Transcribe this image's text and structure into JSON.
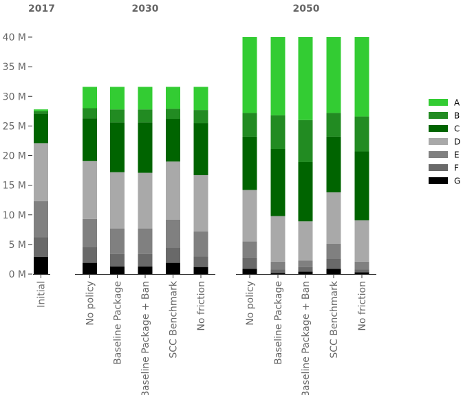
{
  "chart_data": {
    "type": "bar",
    "stacked": true,
    "y_ticks": [
      "0 M",
      "5 M",
      "10 M",
      "15 M",
      "20 M",
      "25 M",
      "30 M",
      "35 M",
      "40 M"
    ],
    "ylim": [
      0,
      40
    ],
    "legend_position": "right",
    "legend": [
      "A",
      "B",
      "C",
      "D",
      "E",
      "F",
      "G"
    ],
    "colors": {
      "A": "#33cc33",
      "B": "#228b22",
      "C": "#006400",
      "D": "#a9a9a9",
      "E": "#808080",
      "F": "#696969",
      "G": "#000000"
    },
    "panels": [
      {
        "title": "2017",
        "categories": [
          "Initial"
        ],
        "series": [
          {
            "name": "G",
            "values": [
              2.9
            ]
          },
          {
            "name": "F",
            "values": [
              3.3
            ]
          },
          {
            "name": "E",
            "values": [
              6.1
            ]
          },
          {
            "name": "D",
            "values": [
              9.8
            ]
          },
          {
            "name": "C",
            "values": [
              5.0
            ]
          },
          {
            "name": "B",
            "values": [
              0.4
            ]
          },
          {
            "name": "A",
            "values": [
              0.3
            ]
          }
        ]
      },
      {
        "title": "2030",
        "categories": [
          "No policy",
          "Baseline Package",
          "Baseline Package + Ban",
          "SCC Benchmark",
          "No friction"
        ],
        "series": [
          {
            "name": "G",
            "values": [
              1.9,
              1.3,
              1.3,
              1.9,
              1.2
            ]
          },
          {
            "name": "F",
            "values": [
              2.7,
              2.1,
              2.1,
              2.6,
              1.8
            ]
          },
          {
            "name": "E",
            "values": [
              4.7,
              4.3,
              4.3,
              4.7,
              4.2
            ]
          },
          {
            "name": "D",
            "values": [
              9.8,
              9.5,
              9.4,
              9.8,
              9.5
            ]
          },
          {
            "name": "C",
            "values": [
              7.2,
              8.4,
              8.5,
              7.2,
              8.8
            ]
          },
          {
            "name": "B",
            "values": [
              1.7,
              2.2,
              2.2,
              1.7,
              2.2
            ]
          },
          {
            "name": "A",
            "values": [
              3.6,
              3.8,
              3.8,
              3.7,
              3.9
            ]
          }
        ]
      },
      {
        "title": "2050",
        "categories": [
          "No policy",
          "Baseline Package",
          "Baseline Package + Ban",
          "SCC Benchmark",
          "No friction"
        ],
        "series": [
          {
            "name": "G",
            "values": [
              0.9,
              0.2,
              0.4,
              0.9,
              0.3
            ]
          },
          {
            "name": "F",
            "values": [
              1.9,
              0.6,
              0.8,
              1.7,
              0.5
            ]
          },
          {
            "name": "E",
            "values": [
              2.7,
              1.3,
              1.1,
              2.5,
              1.3
            ]
          },
          {
            "name": "D",
            "values": [
              8.7,
              7.7,
              6.6,
              8.7,
              7.0
            ]
          },
          {
            "name": "C",
            "values": [
              9.0,
              11.3,
              10.0,
              9.4,
              11.6
            ]
          },
          {
            "name": "B",
            "values": [
              4.0,
              5.7,
              7.1,
              4.0,
              5.9
            ]
          },
          {
            "name": "A",
            "values": [
              12.8,
              13.2,
              14.0,
              12.8,
              13.4
            ]
          }
        ]
      }
    ]
  }
}
